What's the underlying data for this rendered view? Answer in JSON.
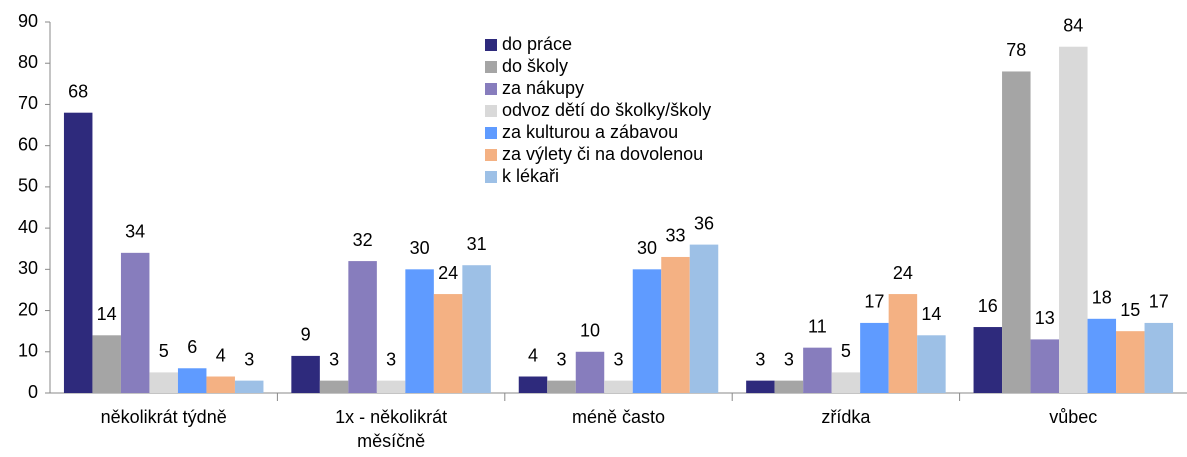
{
  "chart_data": {
    "type": "bar",
    "categories": [
      "několikrát týdně",
      "1x - několikrát měsíčně",
      "méně často",
      "zřídka",
      "vůbec"
    ],
    "series": [
      {
        "name": "do práce",
        "color": "#2e2a7c",
        "values": [
          68,
          9,
          4,
          3,
          16
        ]
      },
      {
        "name": "do školy",
        "color": "#a5a5a5",
        "values": [
          14,
          3,
          3,
          3,
          78
        ]
      },
      {
        "name": "za nákupy",
        "color": "#877dbd",
        "values": [
          34,
          32,
          10,
          11,
          13
        ]
      },
      {
        "name": "odvoz dětí do školky/školy",
        "color": "#d9d9d9",
        "values": [
          5,
          3,
          3,
          5,
          84
        ]
      },
      {
        "name": "za kulturou a zábavou",
        "color": "#5f9bff",
        "values": [
          6,
          30,
          30,
          17,
          18
        ]
      },
      {
        "name": "za výlety či na dovolenou",
        "color": "#f4b183",
        "values": [
          4,
          24,
          33,
          24,
          15
        ]
      },
      {
        "name": "k lékaři",
        "color": "#9dc0e6",
        "values": [
          3,
          31,
          36,
          14,
          17
        ]
      }
    ],
    "ylim": [
      0,
      90
    ],
    "yticks": [
      0,
      10,
      20,
      30,
      40,
      50,
      60,
      70,
      80,
      90
    ],
    "grid": false,
    "legend": "top"
  }
}
